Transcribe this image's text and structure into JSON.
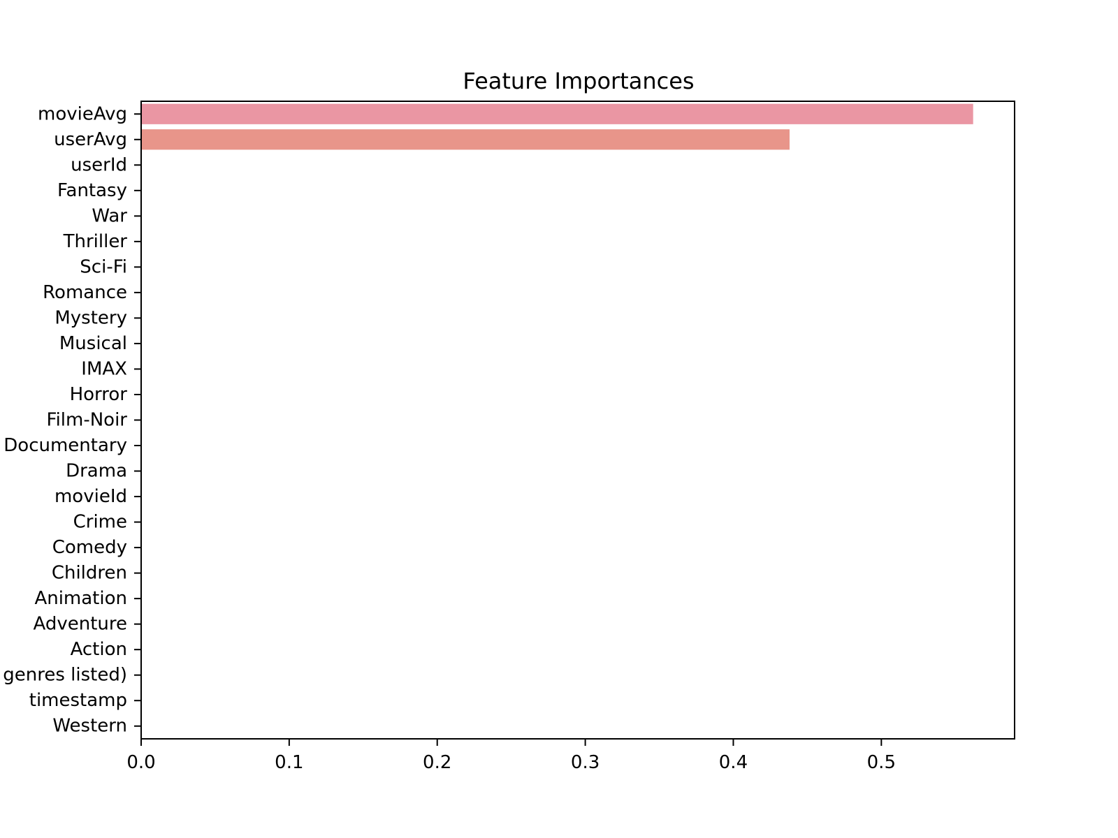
{
  "chart_data": {
    "type": "bar",
    "orientation": "horizontal",
    "title": "Feature Importances",
    "xlabel": "",
    "ylabel": "",
    "xlim": [
      0,
      0.59
    ],
    "grid": false,
    "legend": "none",
    "categories": [
      "movieAvg",
      "userAvg",
      "userId",
      "Fantasy",
      "War",
      "Thriller",
      "Sci-Fi",
      "Romance",
      "Mystery",
      "Musical",
      "IMAX",
      "Horror",
      "Film-Noir",
      "Documentary",
      "Drama",
      "movieId",
      "Crime",
      "Comedy",
      "Children",
      "Animation",
      "Adventure",
      "Action",
      "(no genres listed)",
      "timestamp",
      "Western"
    ],
    "values": [
      0.562,
      0.438,
      0,
      0,
      0,
      0,
      0,
      0,
      0,
      0,
      0,
      0,
      0,
      0,
      0,
      0,
      0,
      0,
      0,
      0,
      0,
      0,
      0,
      0,
      0
    ],
    "bar_colors": [
      "#ea96a3",
      "#e8958a"
    ],
    "xticks": [
      "0.0",
      "0.1",
      "0.2",
      "0.3",
      "0.4",
      "0.5"
    ]
  }
}
